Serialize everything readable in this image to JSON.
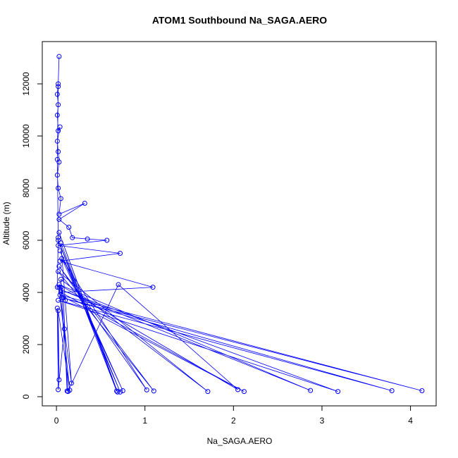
{
  "chart_data": {
    "type": "line",
    "title": "ATOM1 Southbound Na_SAGA.AERO",
    "x_label": "Na_SAGA.AERO",
    "y_label": "Altitude (m)",
    "color": "#0000ff",
    "markers": "open-circle",
    "x": [
      0.03,
      0.02,
      0.01,
      0.02,
      0.01,
      0.02,
      0.04,
      0.01,
      0.02,
      0.03,
      0.01,
      0.02,
      0.05,
      0.03,
      0.32,
      0.03,
      0.14,
      0.18,
      0.35,
      0.57,
      0.02,
      0.72,
      0.04,
      1.09,
      0.05,
      2.12,
      0.04,
      4.13,
      0.06,
      3.79,
      0.02,
      3.18,
      0.05,
      2.87,
      0.03,
      2.05,
      0.7,
      0.13,
      0.05,
      1.71,
      0.02,
      1.1,
      0.03,
      1.02,
      0.06,
      0.75,
      0.04,
      0.72,
      0.02,
      0.68,
      0.03,
      0.69,
      0.05,
      0.17,
      0.03,
      0.15,
      0.02,
      0.03,
      0.01,
      0.02,
      0.09,
      0.12,
      0.08,
      0.1,
      0.05,
      0.01,
      0.02,
      0.01,
      0.02
    ],
    "values": [
      13050,
      12000,
      11600,
      11200,
      10800,
      10200,
      10350,
      9800,
      9400,
      9000,
      8500,
      8000,
      7600,
      7000,
      7420,
      6800,
      6500,
      6100,
      6050,
      6000,
      5800,
      5500,
      5200,
      4200,
      4000,
      200,
      3900,
      230,
      3800,
      230,
      3700,
      200,
      4100,
      240,
      4300,
      270,
      4300,
      200,
      4500,
      200,
      4800,
      220,
      5000,
      260,
      5300,
      230,
      5600,
      180,
      6000,
      220,
      6300,
      180,
      5900,
      520,
      4200,
      250,
      3300,
      650,
      3400,
      270,
      2600,
      220,
      3800,
      3700,
      4200,
      4200,
      6100,
      9100,
      11900
    ],
    "xlim": [
      -0.16,
      4.29
    ],
    "ylim": [
      -351,
      13622
    ],
    "xticks": [
      0,
      1,
      2,
      3,
      4
    ],
    "yticks": [
      0,
      2000,
      4000,
      6000,
      8000,
      10000,
      12000
    ]
  }
}
